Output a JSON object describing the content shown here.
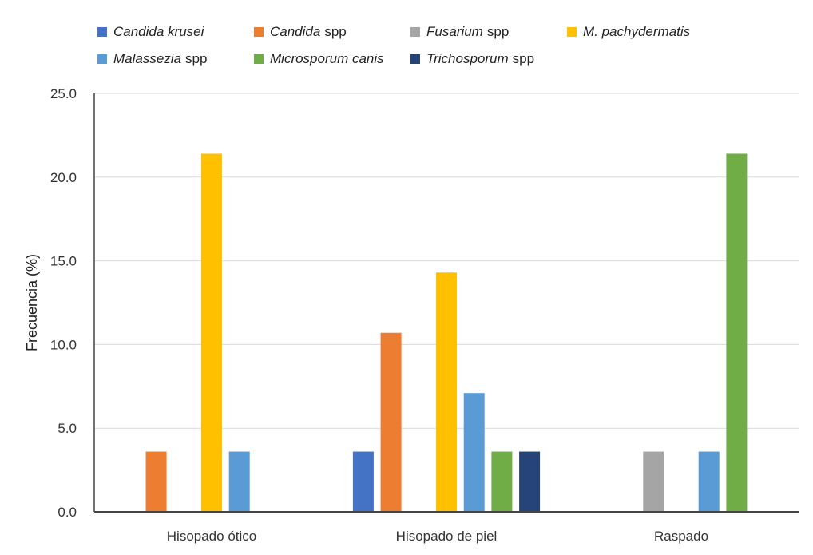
{
  "chart_data": {
    "type": "bar",
    "title": "",
    "xlabel": "",
    "ylabel": "Frecuencia (%)",
    "ylim": [
      0,
      25
    ],
    "yticks": [
      "0.0",
      "5.0",
      "10.0",
      "15.0",
      "20.0",
      "25.0"
    ],
    "grid": true,
    "legend_position": "top",
    "categories": [
      "Hisopado ótico",
      "Hisopado de piel",
      "Raspado"
    ],
    "series": [
      {
        "name": "Candida krusei",
        "name_italic": "Candida krusei",
        "name_suffix": "",
        "color": "#4472C4",
        "values": [
          0,
          3.6,
          0
        ]
      },
      {
        "name": "Candida spp",
        "name_italic": "Candida",
        "name_suffix": "spp",
        "color": "#ED7D31",
        "values": [
          3.6,
          10.7,
          0
        ]
      },
      {
        "name": "Fusarium spp",
        "name_italic": "Fusarium",
        "name_suffix": "spp",
        "color": "#A5A5A5",
        "values": [
          0,
          0,
          3.6
        ]
      },
      {
        "name": "M. pachydermatis",
        "name_italic": "M. pachydermatis",
        "name_suffix": "",
        "color": "#FFC000",
        "values": [
          21.4,
          14.3,
          0
        ]
      },
      {
        "name": "Malassezia spp",
        "name_italic": "Malassezia",
        "name_suffix": "spp",
        "color": "#5B9BD5",
        "values": [
          3.6,
          7.1,
          3.6
        ]
      },
      {
        "name": "Microsporum canis",
        "name_italic": "Microsporum canis",
        "name_suffix": "",
        "color": "#70AD47",
        "values": [
          0,
          3.6,
          21.4
        ]
      },
      {
        "name": "Trichosporum spp",
        "name_italic": "Trichosporum",
        "name_suffix": "spp",
        "color": "#264478",
        "values": [
          0,
          3.6,
          0
        ]
      }
    ]
  }
}
